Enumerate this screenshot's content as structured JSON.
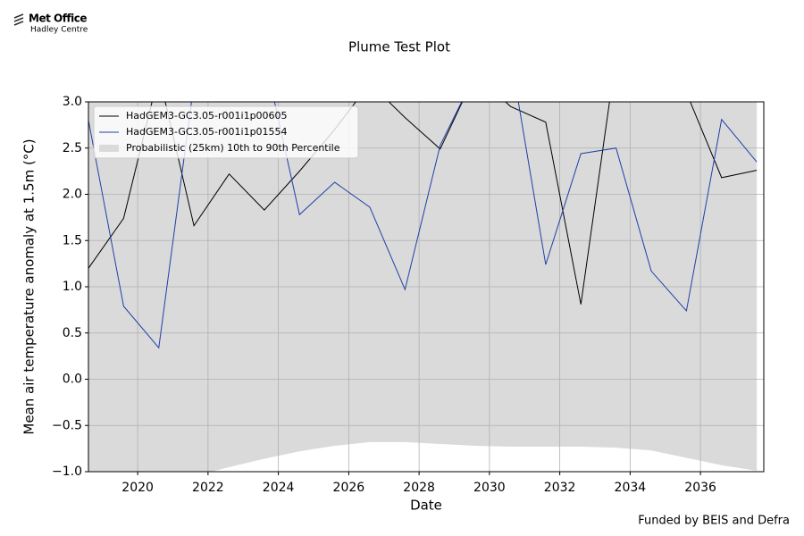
{
  "logo": {
    "name": "Met Office",
    "subname": "Hadley Centre"
  },
  "footer": "Funded by BEIS and Defra",
  "chart_data": {
    "type": "line",
    "title": "Plume Test Plot",
    "x_label": "Date",
    "y_label": "Mean air temperature anomaly at 1.5m (°C)",
    "x": [
      2018.6,
      2019.6,
      2020.6,
      2021.6,
      2022.6,
      2023.6,
      2024.6,
      2025.6,
      2026.6,
      2027.6,
      2028.6,
      2029.6,
      2030.6,
      2031.6,
      2032.6,
      2033.6,
      2034.6,
      2035.6,
      2036.6,
      2037.6
    ],
    "xlim": [
      2018.6,
      2037.8
    ],
    "xticks": [
      2020,
      2022,
      2024,
      2026,
      2028,
      2030,
      2032,
      2034,
      2036
    ],
    "ylim": [
      -1.0,
      3.0
    ],
    "yticks": [
      {
        "value": -1.0,
        "label": "−1.0"
      },
      {
        "value": -0.5,
        "label": "−0.5"
      },
      {
        "value": 0.0,
        "label": "0.0"
      },
      {
        "value": 0.5,
        "label": "0.5"
      },
      {
        "value": 1.0,
        "label": "1.0"
      },
      {
        "value": 1.5,
        "label": "1.5"
      },
      {
        "value": 2.0,
        "label": "2.0"
      },
      {
        "value": 2.5,
        "label": "2.5"
      },
      {
        "value": 3.0,
        "label": "3.0"
      }
    ],
    "grid": true,
    "legend": "upper left",
    "band": {
      "name": "Probabilistic (25km) 10th to 90th Percentile",
      "color": "#dadada",
      "lower": [
        -1.3,
        -1.25,
        -1.2,
        -1.05,
        -0.95,
        -0.86,
        -0.78,
        -0.72,
        -0.68,
        -0.68,
        -0.7,
        -0.72,
        -0.73,
        -0.73,
        -0.73,
        -0.74,
        -0.77,
        -0.85,
        -0.93,
        -0.99
      ],
      "upper": [
        3.4,
        3.4,
        3.4,
        3.4,
        3.4,
        3.4,
        3.4,
        3.4,
        3.4,
        3.4,
        3.4,
        3.4,
        3.4,
        3.4,
        3.4,
        3.4,
        3.4,
        3.4,
        3.4,
        3.4
      ]
    },
    "series": [
      {
        "name": "HadGEM3-GC3.05-r001i1p00605",
        "color": "#000000",
        "values": [
          1.2,
          1.74,
          3.3,
          1.66,
          2.22,
          1.83,
          2.25,
          2.7,
          3.2,
          2.83,
          2.49,
          3.3,
          2.95,
          2.78,
          0.81,
          3.5,
          3.4,
          3.1,
          2.18,
          2.26
        ]
      },
      {
        "name": "HadGEM3-GC3.05-r001i1p01554",
        "color": "#1f3fa8",
        "values": [
          2.8,
          0.79,
          0.34,
          3.2,
          3.6,
          3.5,
          1.78,
          2.13,
          1.86,
          0.97,
          2.53,
          3.3,
          3.5,
          1.24,
          2.44,
          2.5,
          1.17,
          0.74,
          2.81,
          2.35
        ]
      }
    ]
  }
}
